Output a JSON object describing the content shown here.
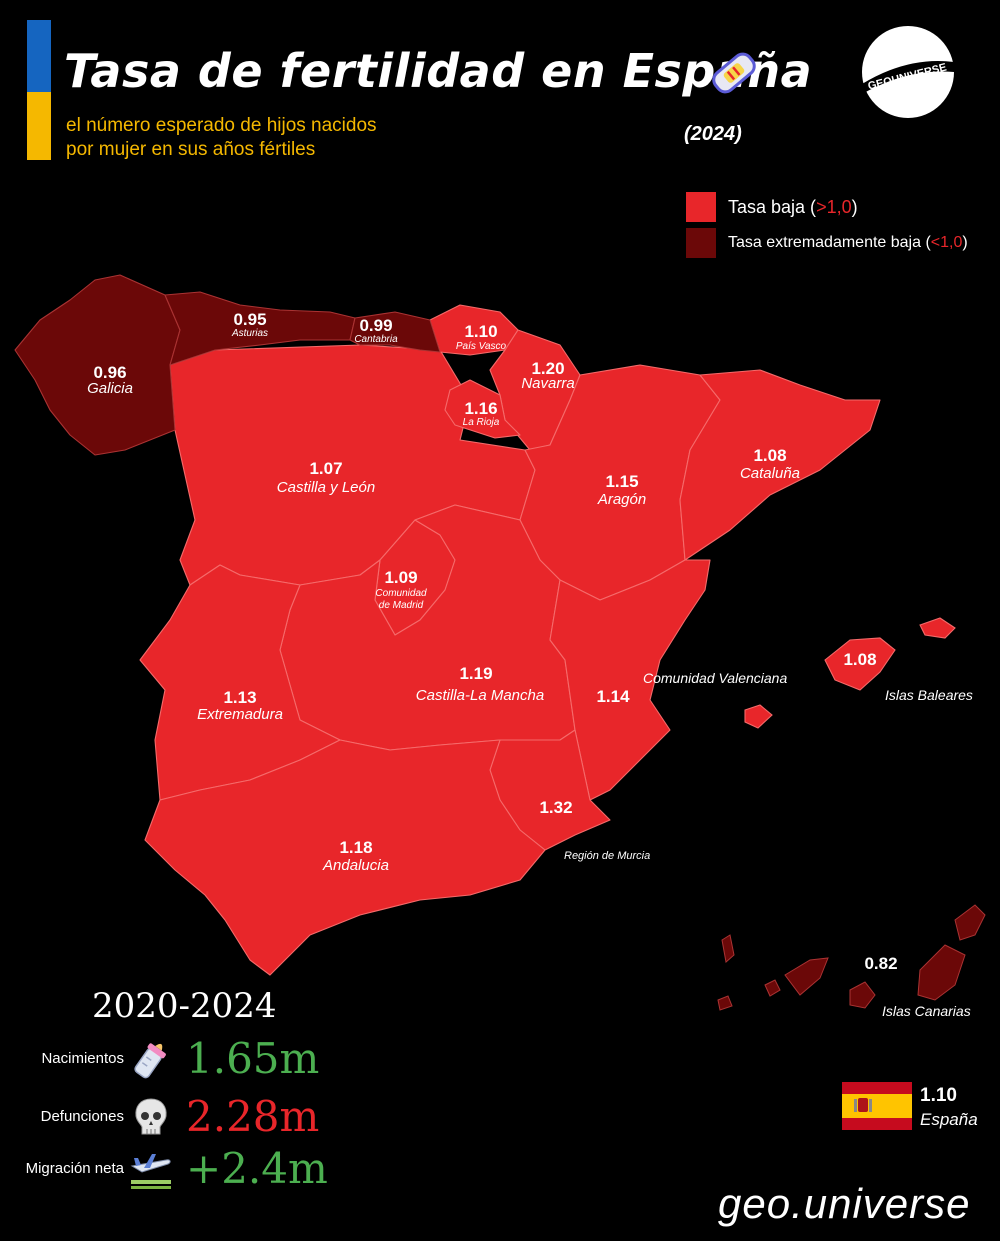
{
  "header": {
    "title": "Tasa de fertilidad en España",
    "subtitle_line1": "el número esperado de hijos nacidos",
    "subtitle_line2": "por mujer en sus años fértiles",
    "year": "(2024)",
    "logo_text": "GEOUNIVERSE",
    "title_icon": "pregnancy-test-icon"
  },
  "legend": {
    "low_label": "Tasa baja (",
    "low_threshold": ">1,0",
    "very_low_label": "Tasa extremadamente baja (",
    "very_low_threshold": "<1,0",
    "close": ")",
    "low_color": "#e8262a",
    "very_low_color": "#6b0808"
  },
  "regions": [
    {
      "id": "galicia",
      "name": "Galicia",
      "value": "0.96",
      "category": "very_low"
    },
    {
      "id": "asturias",
      "name": "Asturias",
      "value": "0.95",
      "category": "very_low"
    },
    {
      "id": "cantabria",
      "name": "Cantabria",
      "value": "0.99",
      "category": "very_low"
    },
    {
      "id": "pais-vasco",
      "name": "País Vasco",
      "value": "1.10",
      "category": "low"
    },
    {
      "id": "navarra",
      "name": "Navarra",
      "value": "1.20",
      "category": "low"
    },
    {
      "id": "la-rioja",
      "name": "La Rioja",
      "value": "1.16",
      "category": "low"
    },
    {
      "id": "castilla-leon",
      "name": "Castilla y León",
      "value": "1.07",
      "category": "low"
    },
    {
      "id": "aragon",
      "name": "Aragón",
      "value": "1.15",
      "category": "low"
    },
    {
      "id": "cataluna",
      "name": "Cataluña",
      "value": "1.08",
      "category": "low"
    },
    {
      "id": "madrid",
      "name_line1": "Comunidad",
      "name_line2": "de Madrid",
      "value": "1.09",
      "category": "low"
    },
    {
      "id": "castilla-la-mancha",
      "name": "Castilla-La Mancha",
      "value": "1.19",
      "category": "low"
    },
    {
      "id": "valenciana",
      "name": "Comunidad Valenciana",
      "value": "1.14",
      "category": "low"
    },
    {
      "id": "extremadura",
      "name": "Extremadura",
      "value": "1.13",
      "category": "low"
    },
    {
      "id": "andalucia",
      "name": "Andalucia",
      "value": "1.18",
      "category": "low"
    },
    {
      "id": "murcia",
      "name": "Región de Murcia",
      "value": "1.32",
      "category": "low"
    },
    {
      "id": "baleares",
      "name": "Islas Baleares",
      "value": "1.08",
      "category": "low"
    },
    {
      "id": "canarias",
      "name": "Islas Canarias",
      "value": "0.82",
      "category": "very_low"
    }
  ],
  "stats": {
    "period": "2020-2024",
    "births_label": "Nacimientos",
    "births_value": "1.65m",
    "births_icon": "baby-bottle-icon",
    "deaths_label": "Defunciones",
    "deaths_value": "2.28m",
    "deaths_icon": "skull-icon",
    "migration_label": "Migración neta",
    "migration_value": "+2.4m",
    "migration_icon": "airplane-icon"
  },
  "national": {
    "value": "1.10",
    "name": "España",
    "flag_icon": "spain-flag-icon"
  },
  "footer": {
    "brand": "geo.universe"
  }
}
